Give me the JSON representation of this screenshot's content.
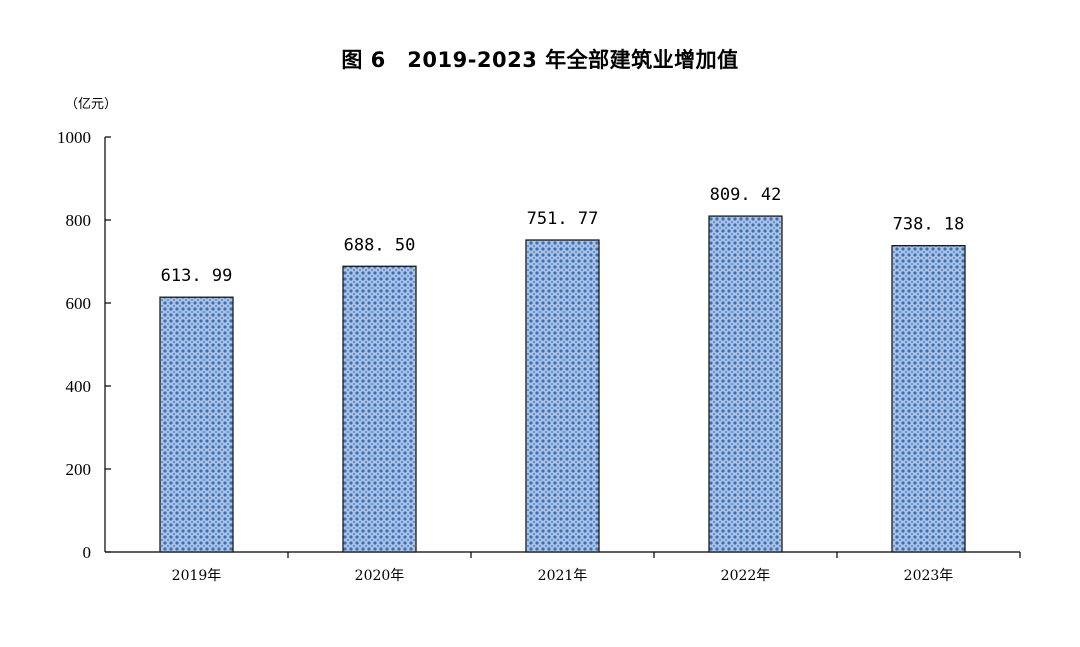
{
  "chart_data": {
    "type": "bar",
    "title": "图 6　2019-2023 年全部建筑业增加值",
    "unit": "（亿元）",
    "categories": [
      "2019年",
      "2020年",
      "2021年",
      "2022年",
      "2023年"
    ],
    "values": [
      613.99,
      688.5,
      751.77,
      809.42,
      738.18
    ],
    "value_labels": [
      "613. 99",
      "688. 50",
      "751. 77",
      "809. 42",
      "738. 18"
    ],
    "yticks": [
      0,
      200,
      400,
      600,
      800,
      1000
    ],
    "ylim": [
      0,
      1000
    ],
    "grid": false,
    "bar_fill": "#a9c3e6",
    "bar_pattern_color": "#3c6fb4",
    "bar_outline": "#1a1a1a"
  }
}
